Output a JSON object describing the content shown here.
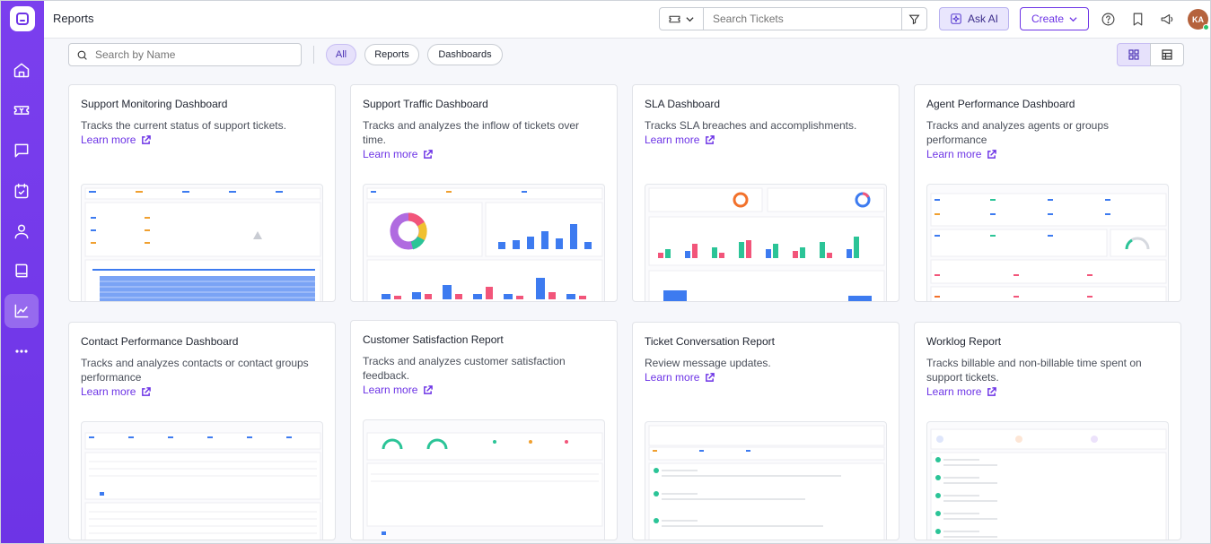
{
  "header": {
    "title": "Reports",
    "search_placeholder": "Search Tickets",
    "ask_ai": "Ask AI",
    "create": "Create",
    "avatar_initials": "KA"
  },
  "toolbar": {
    "search_placeholder": "Search by Name",
    "filters": [
      "All",
      "Reports",
      "Dashboards"
    ]
  },
  "cards": [
    {
      "title": "Support Monitoring Dashboard",
      "desc": "Tracks the current status of support tickets.",
      "link": "Learn more"
    },
    {
      "title": "Support Traffic Dashboard",
      "desc": "Tracks and analyzes the inflow of tickets over time.",
      "link": "Learn more"
    },
    {
      "title": "SLA Dashboard",
      "desc": "Tracks SLA breaches and accomplishments.",
      "link": "Learn more"
    },
    {
      "title": "Agent Performance Dashboard",
      "desc": "Tracks and analyzes agents or groups performance",
      "link": "Learn more"
    },
    {
      "title": "Contact Performance Dashboard",
      "desc": "Tracks and analyzes contacts or contact groups performance",
      "link": "Learn more"
    },
    {
      "title": "Customer Satisfaction Report",
      "desc": "Tracks and analyzes customer satisfaction feedback.",
      "link": "Learn more"
    },
    {
      "title": "Ticket Conversation Report",
      "desc": "Review message updates.",
      "link": "Learn more"
    },
    {
      "title": "Worklog Report",
      "desc": "Tracks billable and non-billable time spent on support tickets.",
      "link": "Learn more"
    }
  ],
  "colors": {
    "accent": "#6d34e6",
    "bar_blue": "#3d7bf0",
    "bar_pink": "#f2557a",
    "bar_green": "#2bc497"
  }
}
